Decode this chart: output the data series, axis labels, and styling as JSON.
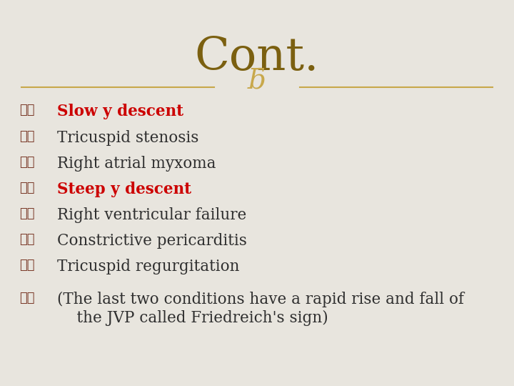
{
  "title": "Cont.",
  "title_color": "#7B6010",
  "title_fontsize": 46,
  "title_font": "serif",
  "bg_color": "#E8E5DE",
  "divider_color": "#C8A84B",
  "ornament_color": "#C8A84B",
  "bullet_color": "#7B3B2A",
  "items": [
    {
      "text": "Slow y descent",
      "bold": true,
      "color": "#CC0000"
    },
    {
      "text": "Tricuspid stenosis",
      "bold": false,
      "color": "#2F2F2F"
    },
    {
      "text": "Right atrial myxoma",
      "bold": false,
      "color": "#2F2F2F"
    },
    {
      "text": "Steep y descent",
      "bold": true,
      "color": "#CC0000"
    },
    {
      "text": "Right ventricular failure",
      "bold": false,
      "color": "#2F2F2F"
    },
    {
      "text": "Constrictive pericarditis",
      "bold": false,
      "color": "#2F2F2F"
    },
    {
      "text": "Tricuspid regurgitation",
      "bold": false,
      "color": "#2F2F2F"
    },
    {
      "text": "(The last two conditions have a rapid rise and fall of\n    the JVP called Friedreich's sign)",
      "bold": false,
      "color": "#2F2F2F"
    }
  ],
  "item_fontsize": 15.5,
  "item_font": "serif"
}
